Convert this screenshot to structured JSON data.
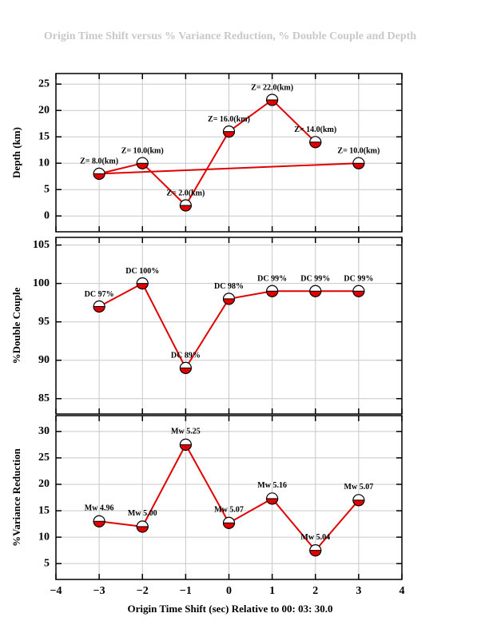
{
  "chart_data": [
    {
      "type": "line",
      "title": "Origin Time Shift versus % Variance Reduction, % Double Couple and Depth",
      "ylabel": "Depth (km)",
      "x": [
        3,
        -3,
        -2,
        -1,
        0,
        1,
        2
      ],
      "series": [
        {
          "color": "#e00000",
          "values": [
            10,
            8,
            10,
            2,
            16,
            22,
            14
          ],
          "value_labels": [
            "Z= 10.0(km)",
            "Z= 8.0(km)",
            "Z= 10.0(km)",
            "Z= 2.0(km)",
            "Z= 16.0(km)",
            "Z= 22.0(km)",
            "Z= 14.0(km)"
          ]
        }
      ],
      "xlim": [
        -4,
        4
      ],
      "xticks": [
        {
          "value": -4,
          "label": "−4"
        },
        {
          "value": -3,
          "label": "−3"
        },
        {
          "value": -2,
          "label": "−2"
        },
        {
          "value": -1,
          "label": "−1"
        },
        0,
        1,
        2,
        3,
        4
      ],
      "ylim": [
        -3,
        27
      ],
      "yticks": [
        0,
        5,
        10,
        15,
        20,
        25
      ],
      "grid": true
    },
    {
      "type": "line",
      "ylabel": "%Double Couple",
      "x": [
        -3,
        -2,
        -1,
        0,
        1,
        2,
        3
      ],
      "series": [
        {
          "color": "#e00000",
          "values": [
            97,
            100,
            89,
            98,
            99,
            99,
            99
          ],
          "value_labels": [
            "DC 97%",
            "DC 100%",
            "DC 89%",
            "DC 98%",
            "DC 99%",
            "DC 99%",
            "DC 99%"
          ]
        }
      ],
      "xlim": [
        -4,
        4
      ],
      "xticks": [
        {
          "value": -4,
          "label": "−4"
        },
        {
          "value": -3,
          "label": "−3"
        },
        {
          "value": -2,
          "label": "−2"
        },
        {
          "value": -1,
          "label": "−1"
        },
        0,
        1,
        2,
        3,
        4
      ],
      "ylim": [
        83,
        106
      ],
      "yticks": [
        85,
        90,
        95,
        100,
        105
      ],
      "grid": true
    },
    {
      "type": "line",
      "ylabel": "%Variance Reduction",
      "xlabel": "Origin Time Shift (sec) Relative to 00: 03: 30.0",
      "x": [
        -3,
        -2,
        -1,
        0,
        1,
        2,
        3
      ],
      "series": [
        {
          "color": "#e00000",
          "values": [
            13,
            12,
            27.5,
            12.7,
            17.3,
            7.5,
            17
          ]
        }
      ],
      "annotations": [
        "Mw 4.96",
        "Mw 5.00",
        "Mw 5.25",
        "Mw 5.07",
        "Mw 5.16",
        "Mw 5.04",
        "Mw 5.07"
      ],
      "xlim": [
        -4,
        4
      ],
      "xticks": [
        {
          "value": -4,
          "label": "−4"
        },
        {
          "value": -3,
          "label": "−3"
        },
        {
          "value": -2,
          "label": "−2"
        },
        {
          "value": -1,
          "label": "−1"
        },
        0,
        1,
        2,
        3,
        4
      ],
      "ylim": [
        2,
        33
      ],
      "yticks": [
        5,
        10,
        15,
        20,
        25,
        30
      ],
      "grid": true
    }
  ]
}
